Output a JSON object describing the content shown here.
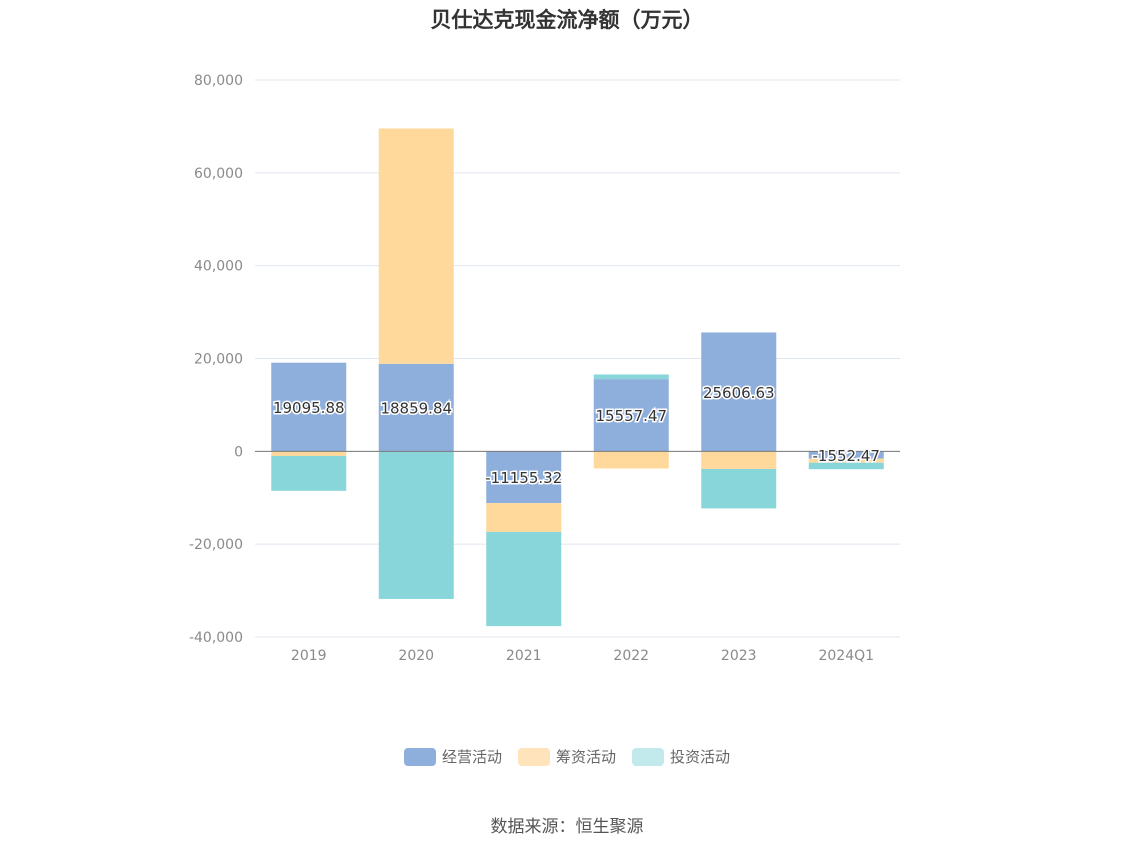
{
  "chart_data": {
    "type": "bar",
    "stacked": true,
    "title": "贝仕达克现金流净额（万元）",
    "categories": [
      "2019",
      "2020",
      "2021",
      "2022",
      "2023",
      "2024Q1"
    ],
    "ylim": [
      -40000,
      80000
    ],
    "yticks": [
      "80,000",
      "60,000",
      "40,000",
      "20,000",
      "0",
      "-20,000",
      "-40,000"
    ],
    "ytick_values": [
      80000,
      60000,
      40000,
      20000,
      0,
      -20000,
      -40000
    ],
    "grid": true,
    "legend_position": "bottom",
    "series": [
      {
        "name": "经营活动",
        "color": "#8eaedc",
        "values": [
          19095.88,
          18859.84,
          -11155.32,
          15557.47,
          25606.63,
          -1552.47
        ],
        "labels": [
          "19095.88",
          "18859.84",
          "-11155.32",
          "15557.47",
          "25606.63",
          "-1552.47"
        ]
      },
      {
        "name": "筹资活动",
        "color": "#ffd89c",
        "values": [
          -1000,
          50700,
          -6200,
          -3700,
          -3800,
          -900
        ]
      },
      {
        "name": "投资活动",
        "color": "#88d6da",
        "values": [
          -7500,
          -31800,
          -20300,
          1000,
          -8500,
          -1400
        ]
      }
    ]
  },
  "legend": {
    "items": [
      {
        "label": "经营活动",
        "color": "#8eaedc"
      },
      {
        "label": "筹资活动",
        "color": "#ffe3bb"
      },
      {
        "label": "投资活动",
        "color": "#c2eaec"
      }
    ]
  },
  "source_note": "数据来源：恒生聚源"
}
